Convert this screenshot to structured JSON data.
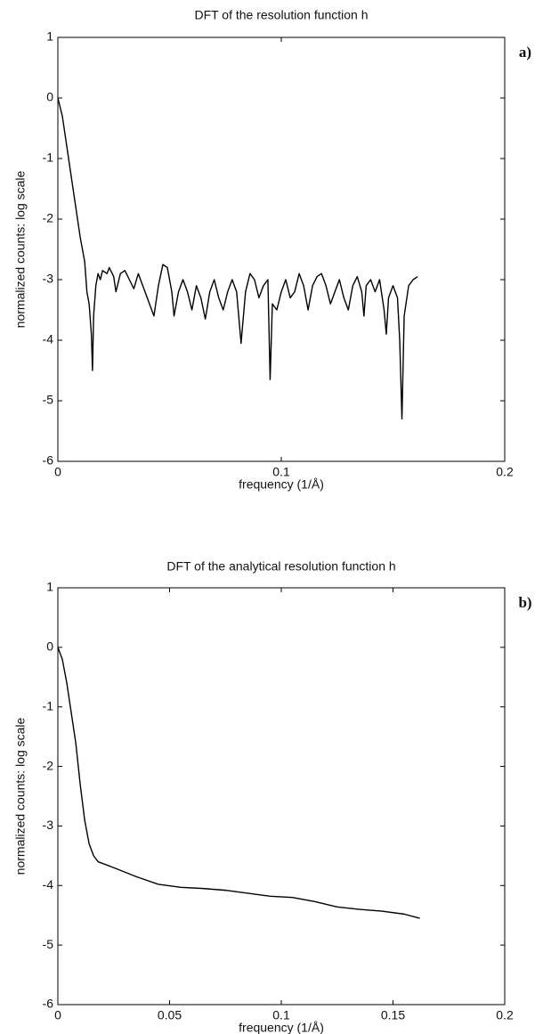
{
  "chart_data": [
    {
      "type": "line",
      "title": "DFT of the resolution function h",
      "panel_label": "a)",
      "xlabel": "frequency (1/Å)",
      "ylabel": "normalized counts: log scale",
      "xlim": [
        0,
        0.2
      ],
      "xticks": [
        0,
        0.1,
        0.2
      ],
      "ylim": [
        -6,
        1
      ],
      "yticks": [
        -6,
        -5,
        -4,
        -3,
        -2,
        -1,
        0,
        1
      ],
      "color": "#000000",
      "x": [
        0,
        0.002,
        0.004,
        0.006,
        0.008,
        0.01,
        0.012,
        0.013,
        0.014,
        0.015,
        0.0155,
        0.016,
        0.017,
        0.018,
        0.019,
        0.02,
        0.022,
        0.023,
        0.025,
        0.026,
        0.028,
        0.03,
        0.032,
        0.034,
        0.036,
        0.038,
        0.04,
        0.042,
        0.043,
        0.045,
        0.047,
        0.049,
        0.051,
        0.052,
        0.054,
        0.056,
        0.058,
        0.06,
        0.062,
        0.064,
        0.066,
        0.068,
        0.07,
        0.072,
        0.074,
        0.076,
        0.078,
        0.08,
        0.082,
        0.084,
        0.086,
        0.088,
        0.09,
        0.092,
        0.094,
        0.095,
        0.096,
        0.098,
        0.1,
        0.102,
        0.104,
        0.106,
        0.108,
        0.11,
        0.112,
        0.114,
        0.116,
        0.118,
        0.12,
        0.122,
        0.124,
        0.126,
        0.128,
        0.13,
        0.132,
        0.134,
        0.136,
        0.137,
        0.138,
        0.14,
        0.142,
        0.144,
        0.146,
        0.147,
        0.148,
        0.15,
        0.152,
        0.153,
        0.154,
        0.155,
        0.157,
        0.159,
        0.161
      ],
      "values": [
        0,
        -0.3,
        -0.8,
        -1.3,
        -1.8,
        -2.3,
        -2.7,
        -3.2,
        -3.4,
        -3.9,
        -4.5,
        -3.6,
        -3.1,
        -2.9,
        -3.0,
        -2.85,
        -2.9,
        -2.8,
        -2.95,
        -3.2,
        -2.9,
        -2.85,
        -3.0,
        -3.15,
        -2.9,
        -3.1,
        -3.3,
        -3.5,
        -3.6,
        -3.1,
        -2.75,
        -2.8,
        -3.2,
        -3.6,
        -3.2,
        -3.0,
        -3.2,
        -3.5,
        -3.1,
        -3.3,
        -3.65,
        -3.2,
        -3.0,
        -3.3,
        -3.5,
        -3.2,
        -3.0,
        -3.2,
        -4.05,
        -3.2,
        -2.9,
        -3.0,
        -3.3,
        -3.1,
        -3.0,
        -4.65,
        -3.4,
        -3.5,
        -3.2,
        -3.0,
        -3.3,
        -3.2,
        -2.9,
        -3.1,
        -3.5,
        -3.1,
        -2.95,
        -2.9,
        -3.1,
        -3.4,
        -3.2,
        -3.0,
        -3.3,
        -3.5,
        -3.1,
        -2.95,
        -3.2,
        -3.6,
        -3.1,
        -3.0,
        -3.2,
        -3.0,
        -3.5,
        -3.9,
        -3.3,
        -3.1,
        -3.3,
        -4.0,
        -5.3,
        -3.6,
        -3.1,
        -3.0,
        -2.95
      ]
    },
    {
      "type": "line",
      "title": "DFT of the analytical resolution function h",
      "panel_label": "b)",
      "xlabel": "frequency (1/Å)",
      "ylabel": "normalized counts: log scale",
      "xlim": [
        0,
        0.2
      ],
      "xticks": [
        0,
        0.05,
        0.1,
        0.15,
        0.2
      ],
      "ylim": [
        -6,
        1
      ],
      "yticks": [
        -6,
        -5,
        -4,
        -3,
        -2,
        -1,
        0,
        1
      ],
      "color": "#000000",
      "x": [
        0,
        0.002,
        0.004,
        0.006,
        0.008,
        0.01,
        0.012,
        0.014,
        0.016,
        0.018,
        0.025,
        0.035,
        0.045,
        0.055,
        0.065,
        0.075,
        0.085,
        0.095,
        0.105,
        0.115,
        0.125,
        0.135,
        0.145,
        0.155,
        0.162
      ],
      "values": [
        0,
        -0.2,
        -0.6,
        -1.1,
        -1.6,
        -2.3,
        -2.9,
        -3.3,
        -3.5,
        -3.6,
        -3.7,
        -3.85,
        -3.98,
        -4.03,
        -4.05,
        -4.08,
        -4.13,
        -4.18,
        -4.2,
        -4.27,
        -4.36,
        -4.4,
        -4.43,
        -4.48,
        -4.55
      ]
    }
  ]
}
